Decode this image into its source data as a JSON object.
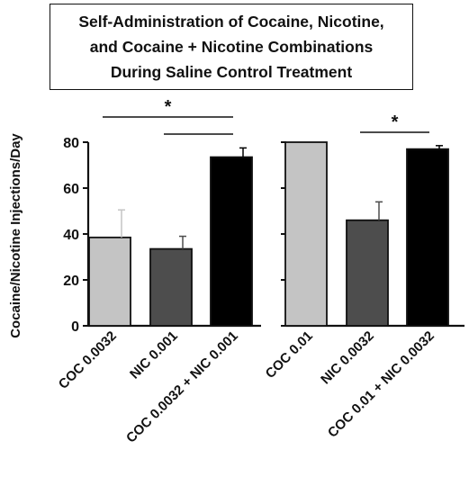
{
  "title_lines": [
    "Self-Administration of Cocaine, Nicotine,",
    "and Cocaine + Nicotine Combinations",
    "During Saline Control Treatment"
  ],
  "chart_data": [
    {
      "type": "bar",
      "ylabel": "Cocaine/Nicotine Injections/Day",
      "ylim": [
        0,
        80
      ],
      "yticks": [
        0,
        20,
        40,
        60,
        80
      ],
      "categories": [
        "COC 0.0032",
        "NIC 0.001",
        "COC 0.0032 + NIC 0.001"
      ],
      "values": [
        38.5,
        33.5,
        73.5
      ],
      "errors": [
        12,
        5.5,
        4
      ],
      "colors": [
        "#c4c4c4",
        "#4d4d4d",
        "#000000"
      ],
      "significance": [
        {
          "from": 0,
          "to": 2,
          "label": "*"
        },
        {
          "from": 1,
          "to": 2,
          "label": ""
        }
      ]
    },
    {
      "type": "bar",
      "ylim": [
        0,
        80
      ],
      "categories": [
        "COC 0.01",
        "NIC 0.0032",
        "COC 0.01 + NIC 0.0032"
      ],
      "values": [
        80,
        46,
        77
      ],
      "errors": [
        0,
        8,
        1.5
      ],
      "colors": [
        "#c4c4c4",
        "#4d4d4d",
        "#000000"
      ],
      "significance": [
        {
          "from": 1,
          "to": 2,
          "label": "*"
        }
      ]
    }
  ]
}
